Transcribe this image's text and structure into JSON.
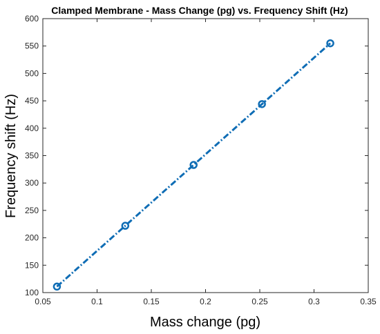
{
  "chart_data": {
    "type": "line",
    "title": "Clamped Membrane - Mass Change (pg) vs. Frequency Shift (Hz)",
    "xlabel": "Mass change (pg)",
    "ylabel": "Frequency shift (Hz)",
    "xlim": [
      0.05,
      0.35
    ],
    "ylim": [
      100,
      600
    ],
    "xticks": [
      "0.05",
      "0.1",
      "0.15",
      "0.2",
      "0.25",
      "0.3",
      "0.35"
    ],
    "yticks": [
      "100",
      "150",
      "200",
      "250",
      "300",
      "350",
      "400",
      "450",
      "500",
      "550",
      "600"
    ],
    "grid": false,
    "legend": "none",
    "series": [
      {
        "x": [
          0.063,
          0.126,
          0.189,
          0.252,
          0.315
        ],
        "y": [
          111,
          222,
          333,
          444,
          555
        ],
        "color": "#0f6db5",
        "line_style": "dash-dot",
        "marker": "circle"
      }
    ]
  }
}
